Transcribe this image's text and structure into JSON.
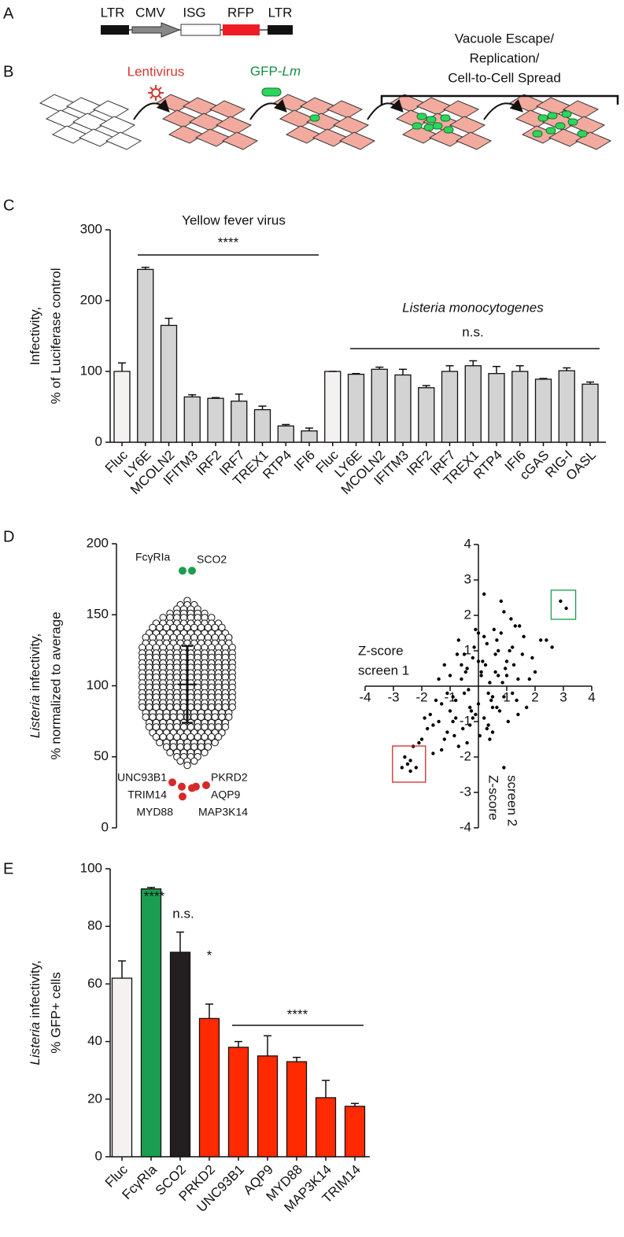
{
  "panel_labels": [
    "A",
    "B",
    "C",
    "D",
    "E"
  ],
  "construct": {
    "labels": [
      "LTR",
      "CMV",
      "ISG",
      "RFP",
      "LTR"
    ]
  },
  "workflow": {
    "lentivirus": "Lentivirus",
    "gfp_prefix": "GFP-",
    "gfp_italic": "Lm",
    "phase": [
      "Vacuole Escape/",
      "Replication/",
      "Cell-to-Cell Spread"
    ]
  },
  "chart_data": [
    {
      "type": "bar",
      "y_label": [
        "Infectivity,",
        "% of Luciferase control"
      ],
      "categories": [
        "Fluc",
        "LY6E",
        "MCOLN2",
        "IFITM3",
        "IRF2",
        "IRF7",
        "TREX1",
        "RTP4",
        "IFI6",
        "Fluc",
        "LY6E",
        "MCOLN2",
        "IFITM3",
        "IRF2",
        "IRF7",
        "TREX1",
        "RTP4",
        "IFI6",
        "cGAS",
        "RIG-I",
        "OASL"
      ],
      "values": [
        100,
        244,
        165,
        64,
        62,
        58,
        46,
        23,
        16,
        100,
        96,
        103,
        95,
        77,
        100,
        108,
        97,
        100,
        89,
        101,
        82
      ],
      "errors": [
        12,
        3,
        10,
        3,
        1,
        10,
        5,
        2,
        4,
        0,
        1,
        3,
        8,
        3,
        8,
        7,
        10,
        8,
        1,
        4,
        3
      ],
      "colors": [
        "#f4f1f1",
        "#d3d3d3",
        "#d3d3d3",
        "#d3d3d3",
        "#d3d3d3",
        "#d3d3d3",
        "#d3d3d3",
        "#d3d3d3",
        "#d3d3d3",
        "#f4f1f1",
        "#d3d3d3",
        "#d3d3d3",
        "#d3d3d3",
        "#d3d3d3",
        "#d3d3d3",
        "#d3d3d3",
        "#d3d3d3",
        "#d3d3d3",
        "#d3d3d3",
        "#d3d3d3",
        "#d3d3d3"
      ],
      "ylim": [
        0,
        300
      ],
      "yticks": [
        0,
        100,
        200,
        300
      ],
      "annotations": [
        "Yellow fever virus",
        "****",
        "Listeria monocytogenes",
        "n.s."
      ]
    },
    {
      "type": "beeswarm",
      "y_label_italic": "Listeria",
      "y_label": [
        "infectivity,",
        "% normalized to average"
      ],
      "ylim": [
        0,
        200
      ],
      "yticks": [
        0,
        50,
        100,
        150,
        200
      ],
      "values": [
        160,
        157,
        157,
        157,
        154,
        154,
        154,
        154,
        151,
        151,
        151,
        151,
        151,
        151,
        148,
        148,
        148,
        148,
        148,
        148,
        148,
        148,
        144,
        144,
        144,
        144,
        144,
        144,
        144,
        144,
        144,
        144,
        141,
        141,
        141,
        141,
        141,
        141,
        141,
        141,
        141,
        141,
        141,
        137,
        137,
        137,
        137,
        137,
        137,
        137,
        137,
        137,
        137,
        137,
        137,
        134,
        134,
        134,
        134,
        134,
        134,
        134,
        134,
        134,
        134,
        134,
        134,
        134,
        130,
        130,
        130,
        130,
        130,
        130,
        130,
        130,
        130,
        130,
        130,
        130,
        130,
        127,
        127,
        127,
        127,
        127,
        127,
        127,
        127,
        127,
        127,
        127,
        127,
        127,
        127,
        123,
        123,
        123,
        123,
        123,
        123,
        123,
        123,
        123,
        123,
        123,
        123,
        123,
        123,
        120,
        120,
        120,
        120,
        120,
        120,
        120,
        120,
        120,
        120,
        120,
        120,
        120,
        120,
        116,
        116,
        116,
        116,
        116,
        116,
        116,
        116,
        116,
        116,
        116,
        116,
        116,
        116,
        113,
        113,
        113,
        113,
        113,
        113,
        113,
        113,
        113,
        113,
        113,
        113,
        113,
        113,
        109,
        109,
        109,
        109,
        109,
        109,
        109,
        109,
        109,
        109,
        109,
        109,
        109,
        109,
        106,
        106,
        106,
        106,
        106,
        106,
        106,
        106,
        106,
        106,
        106,
        106,
        106,
        106,
        102,
        102,
        102,
        102,
        102,
        102,
        102,
        102,
        102,
        102,
        102,
        102,
        102,
        102,
        99,
        99,
        99,
        99,
        99,
        99,
        99,
        99,
        99,
        99,
        99,
        99,
        99,
        99,
        95,
        95,
        95,
        95,
        95,
        95,
        95,
        95,
        95,
        95,
        95,
        95,
        95,
        95,
        92,
        92,
        92,
        92,
        92,
        92,
        92,
        92,
        92,
        92,
        92,
        92,
        92,
        92,
        88,
        88,
        88,
        88,
        88,
        88,
        88,
        88,
        88,
        88,
        88,
        88,
        88,
        88,
        85,
        85,
        85,
        85,
        85,
        85,
        85,
        85,
        85,
        85,
        85,
        85,
        85,
        85,
        81,
        81,
        81,
        81,
        81,
        81,
        81,
        81,
        81,
        81,
        81,
        81,
        81,
        78,
        78,
        78,
        78,
        78,
        78,
        78,
        78,
        78,
        78,
        78,
        78,
        78,
        74,
        74,
        74,
        74,
        74,
        74,
        74,
        74,
        74,
        74,
        74,
        74,
        71,
        71,
        71,
        71,
        71,
        71,
        71,
        71,
        71,
        71,
        71,
        71,
        67,
        67,
        67,
        67,
        67,
        67,
        67,
        67,
        67,
        67,
        67,
        64,
        64,
        64,
        64,
        64,
        64,
        64,
        64,
        64,
        64,
        60,
        60,
        60,
        60,
        60,
        60,
        60,
        60,
        60,
        57,
        57,
        57,
        57,
        57,
        57,
        57,
        53,
        53,
        53,
        53,
        53,
        53,
        50,
        50,
        50,
        50,
        47,
        47,
        47,
        44
      ],
      "mean": 101,
      "sd": 27,
      "hits": [
        {
          "name": "FcγRIa",
          "value": 181,
          "color": "#1b9e4f"
        },
        {
          "name": "SCO2",
          "value": 181,
          "color": "#1b9e4f"
        },
        {
          "name": "UNC93B1",
          "value": 32,
          "color": "#d42a2a"
        },
        {
          "name": "PKRD2",
          "value": 30,
          "color": "#d42a2a"
        },
        {
          "name": "TRIM14",
          "value": 29,
          "color": "#d42a2a"
        },
        {
          "name": "AQP9",
          "value": 29,
          "color": "#d42a2a"
        },
        {
          "name": "MYD88",
          "value": 22,
          "color": "#d42a2a"
        },
        {
          "name": "MAP3K14",
          "value": 28,
          "color": "#d42a2a"
        }
      ]
    },
    {
      "type": "scatter",
      "x_label": [
        "Z-score",
        "screen 1"
      ],
      "y_label": [
        "Z-score",
        "screen 2"
      ],
      "xlim": [
        -4,
        4
      ],
      "ylim": [
        -4,
        4
      ],
      "xticks": [
        -4,
        -3,
        -2,
        -1,
        1,
        2,
        3,
        4
      ],
      "yticks": [
        -4,
        -3,
        -2,
        -1,
        1,
        2,
        3,
        4
      ],
      "color": "#000000",
      "x": [
        -1.8,
        -1.5,
        -1.2,
        -1.0,
        -0.8,
        -0.6,
        -0.5,
        -0.3,
        -0.2,
        0.0,
        0.1,
        0.2,
        0.3,
        0.4,
        0.5,
        0.6,
        0.7,
        0.8,
        0.9,
        1.0,
        1.2,
        1.4,
        1.6,
        1.9,
        2.2,
        -2.1,
        -1.7,
        -1.4,
        -1.1,
        -0.9,
        -0.7,
        -0.4,
        -0.1,
        0.15,
        0.35,
        0.55,
        0.75,
        0.95,
        1.15,
        1.35,
        1.55,
        1.8,
        -1.9,
        -1.6,
        -1.3,
        -1.0,
        -0.75,
        -0.55,
        -0.35,
        -0.15,
        0.05,
        0.25,
        0.45,
        0.65,
        0.85,
        1.05,
        1.25,
        1.45,
        1.7,
        2.0,
        -1.2,
        -0.9,
        -0.6,
        -0.3,
        0.0,
        0.3,
        0.6,
        0.9,
        1.2,
        -0.8,
        -0.5,
        -0.2,
        0.1,
        0.4,
        0.7,
        1.0,
        -1.4,
        -1.1,
        -0.85,
        -0.45,
        -0.25,
        0.2,
        0.5,
        0.8,
        1.1,
        1.4,
        -0.7,
        -0.4,
        0.0,
        0.35,
        0.65,
        -1.6,
        -1.3,
        2.4,
        2.6,
        -2.3,
        -2.0,
        0.9,
        1.3,
        0.2,
        -0.1,
        0.5,
        2.9,
        3.1,
        -2.6,
        -2.4,
        -2.7,
        -2.4,
        -2.2,
        -2.5
      ],
      "y": [
        -1.2,
        -0.4,
        -1.5,
        0.3,
        -0.9,
        0.6,
        -0.2,
        -1.1,
        0.8,
        -0.5,
        0.4,
        -0.9,
        1.2,
        0.1,
        -0.6,
        0.9,
        0.3,
        1.5,
        -0.3,
        0.7,
        1.1,
        0.2,
        1.4,
        0.8,
        1.3,
        -1.6,
        -0.8,
        0.2,
        -1.3,
        -0.3,
        -1.7,
        0.5,
        -0.8,
        0.7,
        -0.2,
        1.6,
        -0.7,
        0.5,
        1.9,
        -0.4,
        0.9,
        0.2,
        -0.9,
        -1.9,
        -0.5,
        -0.7,
        0.9,
        -1.2,
        -0.1,
        1.1,
        -1.4,
        0.6,
        -0.4,
        1.3,
        0.1,
        -1.0,
        0.6,
        1.7,
        -0.6,
        0.4,
        0.6,
        -1.0,
        0.2,
        -0.6,
        1.5,
        -1.2,
        0.4,
        2.1,
        -0.2,
        -0.4,
        0.9,
        -0.9,
        0.3,
        -1.5,
        1.0,
        0.3,
        -1.0,
        -0.2,
        -1.4,
        0.4,
        -0.7,
        1.4,
        -0.3,
        2.4,
        1.0,
        -0.8,
        1.3,
        -1.6,
        0.7,
        -1.1,
        -0.6,
        -1.1,
        -1.8,
        1.3,
        1.1,
        -1.7,
        -1.5,
        -2.3,
        1.7,
        2.6,
        1.6,
        -1.3,
        2.4,
        2.2,
        -2.0,
        -2.1,
        -2.3,
        -2.4,
        -2.3,
        -2.2
      ]
    },
    {
      "type": "bar",
      "y_label_italic": "Listeria",
      "y_label": [
        "infectivity,",
        "% GFP+ cells"
      ],
      "categories": [
        "Fluc",
        "FcγRIa",
        "SCO2",
        "PRKD2",
        "UNC93B1",
        "AQP9",
        "MYD88",
        "MAP3K14",
        "TRIM14"
      ],
      "values": [
        62,
        93,
        71,
        48,
        38,
        35,
        33,
        20.5,
        17.5
      ],
      "errors": [
        6,
        0.5,
        7,
        5,
        2,
        7,
        1.5,
        6,
        1
      ],
      "colors": [
        "#f4f1f1",
        "#1b9e4f",
        "#231f20",
        "#ff2a00",
        "#ff2a00",
        "#ff2a00",
        "#ff2a00",
        "#ff2a00",
        "#ff2a00"
      ],
      "ylim": [
        0,
        100
      ],
      "yticks": [
        0,
        20,
        40,
        60,
        80,
        100
      ],
      "annotations": [
        "****",
        "n.s.",
        "*",
        "****"
      ]
    }
  ]
}
